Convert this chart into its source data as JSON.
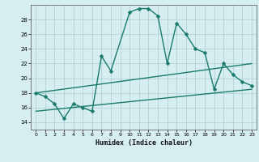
{
  "xlabel": "Humidex (Indice chaleur)",
  "bg_color": "#d6eef0",
  "grid_color": "#aacdd4",
  "line_color": "#1a7a6e",
  "xlim": [
    -0.5,
    23.5
  ],
  "ylim": [
    13.0,
    30.0
  ],
  "xticks": [
    0,
    1,
    2,
    3,
    4,
    5,
    6,
    7,
    8,
    9,
    10,
    11,
    12,
    13,
    14,
    15,
    16,
    17,
    18,
    19,
    20,
    21,
    22,
    23
  ],
  "yticks": [
    14,
    16,
    18,
    20,
    22,
    24,
    26,
    28
  ],
  "series1_x": [
    0,
    1,
    2,
    3,
    4,
    5,
    6,
    7,
    8,
    10,
    11,
    12,
    13,
    14,
    15,
    16,
    17,
    18,
    19,
    20,
    21,
    22,
    23
  ],
  "series1_y": [
    18,
    17.5,
    16.5,
    14.5,
    16.5,
    16,
    15.5,
    23,
    21,
    29,
    29.5,
    29.5,
    28.5,
    22,
    27.5,
    26,
    24,
    23.5,
    18.5,
    22,
    20.5,
    19.5,
    19
  ],
  "trend1_x": [
    0,
    23
  ],
  "trend1_y": [
    18.0,
    22.0
  ],
  "trend2_x": [
    0,
    23
  ],
  "trend2_y": [
    15.5,
    18.5
  ],
  "markersize": 2.5,
  "linewidth": 1.0
}
